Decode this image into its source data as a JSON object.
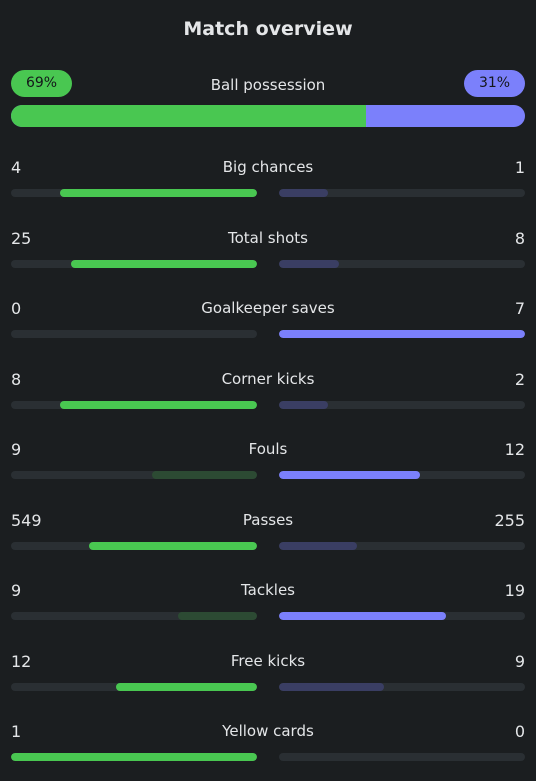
{
  "title": "Match overview",
  "colors": {
    "home_strong": "#49c751",
    "home_weak": "#2c4a33",
    "away_strong": "#7b80fb",
    "away_weak": "#3a3e63",
    "track": "#2a2f33"
  },
  "possession": {
    "label": "Ball possession",
    "home_label": "69%",
    "away_label": "31%",
    "home": 69,
    "away": 31
  },
  "stats": [
    {
      "label": "Big chances",
      "home": "4",
      "away": "1"
    },
    {
      "label": "Total shots",
      "home": "25",
      "away": "8"
    },
    {
      "label": "Goalkeeper saves",
      "home": "0",
      "away": "7"
    },
    {
      "label": "Corner kicks",
      "home": "8",
      "away": "2"
    },
    {
      "label": "Fouls",
      "home": "9",
      "away": "12"
    },
    {
      "label": "Passes",
      "home": "549",
      "away": "255"
    },
    {
      "label": "Tackles",
      "home": "9",
      "away": "19"
    },
    {
      "label": "Free kicks",
      "home": "12",
      "away": "9"
    },
    {
      "label": "Yellow cards",
      "home": "1",
      "away": "0"
    }
  ]
}
